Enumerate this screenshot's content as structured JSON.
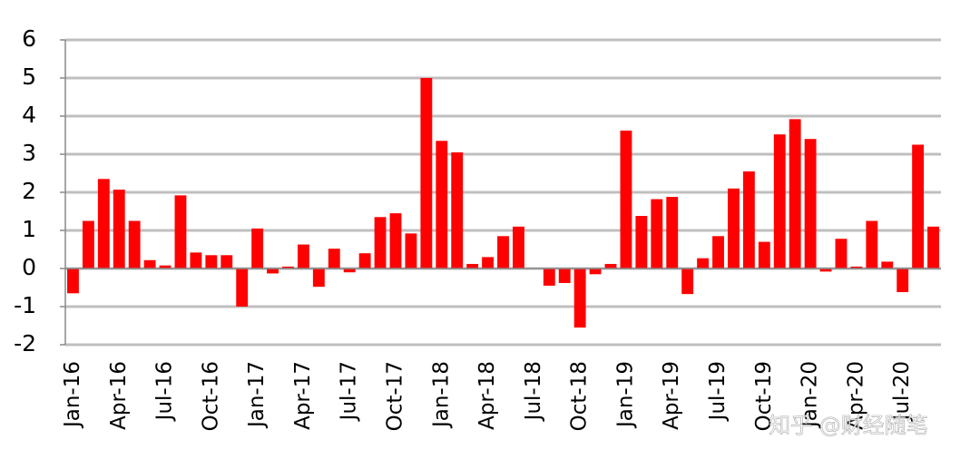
{
  "chart_data": {
    "type": "bar",
    "categories": [
      "Jan-16",
      null,
      null,
      "Apr-16",
      null,
      null,
      "Jul-16",
      null,
      null,
      "Oct-16",
      null,
      null,
      "Jan-17",
      null,
      null,
      "Apr-17",
      null,
      null,
      "Jul-17",
      null,
      null,
      "Oct-17",
      null,
      null,
      "Jan-18",
      null,
      null,
      "Apr-18",
      null,
      null,
      "Jul-18",
      null,
      null,
      "Oct-18",
      null,
      null,
      "Jan-19",
      null,
      null,
      "Apr-19",
      null,
      null,
      "Jul-19",
      null,
      null,
      "Oct-19",
      null,
      null,
      "Jan-20",
      null,
      null,
      "Apr-20",
      null,
      null,
      "Jul-20",
      null,
      null
    ],
    "values": [
      -0.65,
      1.25,
      2.35,
      2.07,
      1.25,
      0.22,
      0.08,
      1.92,
      0.42,
      0.35,
      0.35,
      -1.0,
      1.05,
      -0.13,
      0.05,
      0.63,
      -0.48,
      0.52,
      -0.1,
      0.4,
      1.35,
      1.45,
      0.92,
      5.0,
      3.35,
      3.05,
      0.12,
      0.3,
      0.85,
      1.1,
      0,
      -0.45,
      -0.38,
      -1.55,
      -0.15,
      0.12,
      3.62,
      1.38,
      1.82,
      1.88,
      -0.67,
      0.27,
      0.85,
      2.1,
      2.55,
      0.7,
      3.52,
      3.92,
      3.4,
      -0.08,
      0.78,
      0.05,
      1.25,
      0.18,
      -0.62,
      3.25,
      1.1
    ],
    "color": "#ff0000",
    "ylim": [
      -2,
      6
    ],
    "yticks": [
      -2,
      -1,
      0,
      1,
      2,
      3,
      4,
      5,
      6
    ],
    "grid": true,
    "watermark": "知乎 @财经随笔"
  }
}
